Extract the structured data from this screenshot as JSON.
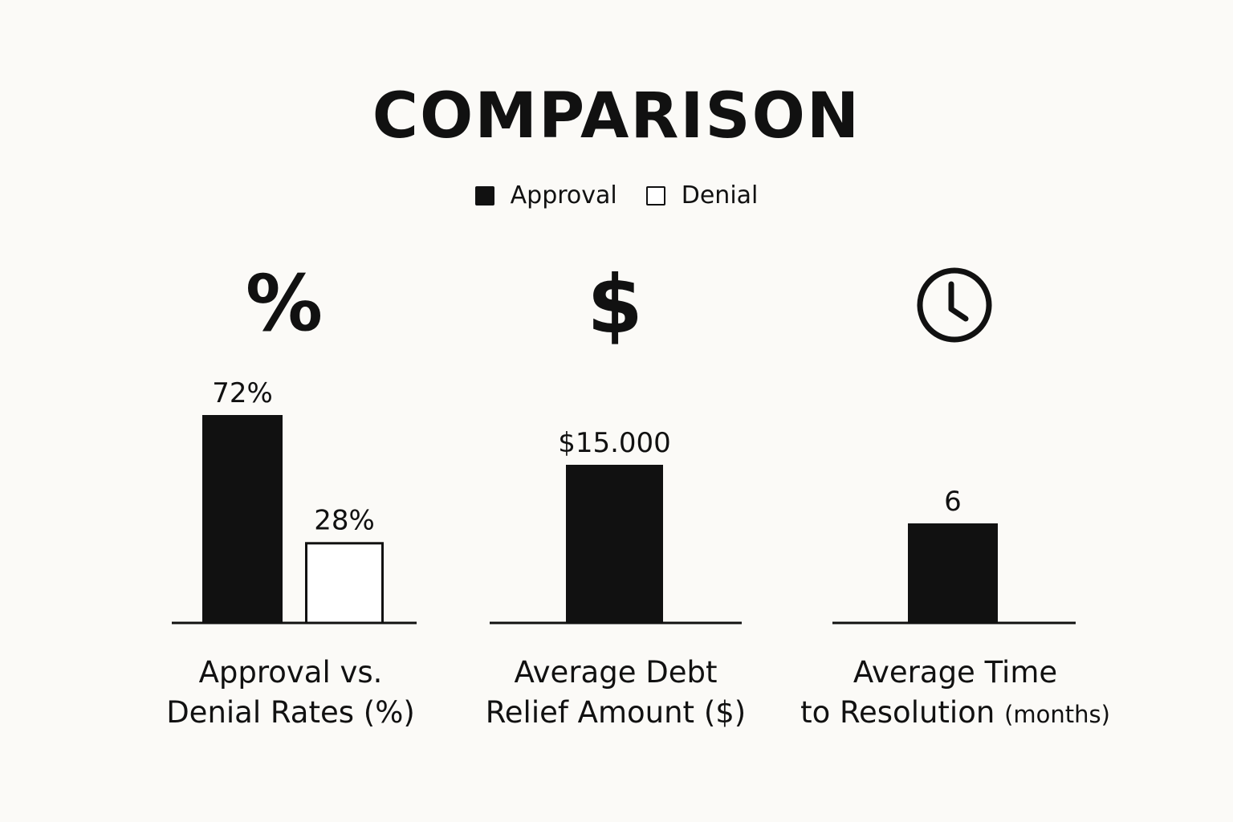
{
  "title": "COMPARISON",
  "legend": [
    {
      "label": "Approval",
      "style": "filled"
    },
    {
      "label": "Denial",
      "style": "outline"
    }
  ],
  "colors": {
    "ink": "#111111",
    "background": "#fbfaf7",
    "empty_fill": "#ffffff"
  },
  "panels": [
    {
      "icon": "percent-icon",
      "icon_glyph": "%",
      "caption_line1": "Approval vs.",
      "caption_line2": "Denial Rates (%)",
      "caption_unit": ""
    },
    {
      "icon": "dollar-icon",
      "icon_glyph": "$",
      "caption_line1": "Average Debt",
      "caption_line2": "Relief Amount ($)",
      "caption_unit": ""
    },
    {
      "icon": "clock-icon",
      "icon_glyph": "",
      "caption_line1": "Average Time",
      "caption_line2": "to Resolution",
      "caption_unit": "(months)"
    }
  ],
  "chart_data": [
    {
      "type": "bar",
      "title": "Approval vs. Denial Rates (%)",
      "categories": [
        "Approval",
        "Denial"
      ],
      "values": [
        72,
        28
      ],
      "labels": [
        "72%",
        "28%"
      ],
      "styles": [
        "filled",
        "outline"
      ],
      "ylim": [
        0,
        100
      ],
      "grid": false
    },
    {
      "type": "bar",
      "title": "Average Debt Relief Amount ($)",
      "categories": [
        "Approval"
      ],
      "values": [
        15000
      ],
      "labels": [
        "$15.000"
      ],
      "styles": [
        "filled"
      ],
      "grid": false
    },
    {
      "type": "bar",
      "title": "Average Time to Resolution (months)",
      "categories": [
        "Approval"
      ],
      "values": [
        6
      ],
      "labels": [
        "6"
      ],
      "styles": [
        "filled"
      ],
      "grid": false
    }
  ]
}
